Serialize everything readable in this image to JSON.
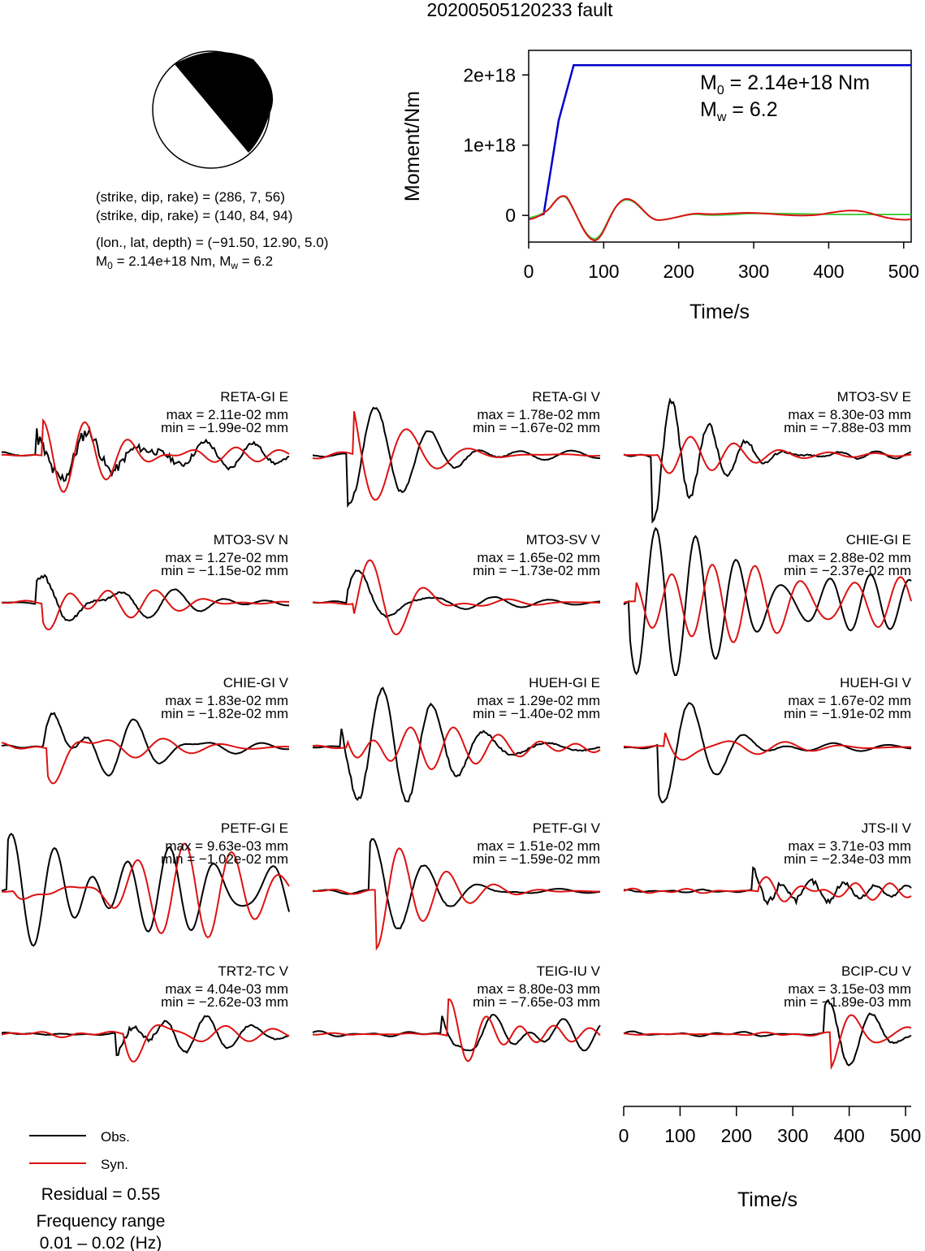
{
  "title": "20200505120233 fault",
  "mechanism": {
    "line1": "(strike, dip, rake) = (286, 7, 56)",
    "line2": "(strike, dip, rake) = (140, 84, 94)",
    "line3": "(lon., lat, depth) = (−91.50, 12.90, 5.0)",
    "m0_prefix": "M",
    "m0_sub": "0",
    "m0_rest": " = 2.14e+18 Nm, M",
    "mw_sub": "w",
    "mw_rest": " = 6.2"
  },
  "moment_plot": {
    "ylabel": "Moment/Nm",
    "xlabel": "Time/s",
    "annot_m0_main": "M",
    "annot_m0_sub": "0",
    "annot_m0_rest": " = 2.14e+18 Nm",
    "annot_mw_main": "M",
    "annot_mw_sub": "w",
    "annot_mw_rest": " = 6.2"
  },
  "wave_axis": {
    "xlabel": "Time/s"
  },
  "legend": {
    "obs_label": "Obs.",
    "syn_label": "Syn.",
    "obs_color": "#000000",
    "syn_color": "#dd1111"
  },
  "residual": "Residual = 0.55",
  "freq_label": "Frequency range",
  "freq_value": "0.01 – 0.02 (Hz)",
  "chart_data": [
    {
      "type": "line",
      "name": "moment-rate",
      "x": [
        0,
        20,
        40,
        60,
        80,
        100,
        510
      ],
      "series": [
        {
          "name": "",
          "color": "#0000cc",
          "values": [
            -5e+16,
            2e+16,
            1.35e+18,
            2.14e+18,
            2.14e+18,
            2.14e+18,
            2.14e+18
          ]
        }
      ],
      "xlim": [
        0,
        510
      ],
      "ylim": [
        -3.8e+17,
        2.35e+18
      ],
      "xticks": [
        0,
        100,
        200,
        300,
        400,
        500
      ],
      "yticks": [
        0,
        1e+18,
        2e+18
      ],
      "ytick_labels": [
        "0",
        "1e+18",
        "2e+18"
      ],
      "xtick_labels": [
        "0",
        "100",
        "200",
        "300",
        "400",
        "500"
      ]
    },
    {
      "type": "line",
      "name": "waveforms",
      "xlim": [
        0,
        510
      ],
      "xticks": [
        0,
        100,
        200,
        300,
        400,
        500
      ],
      "xtick_labels": [
        "0",
        "100",
        "200",
        "300",
        "400",
        "500"
      ],
      "stations": [
        {
          "label": "RETA-GI E",
          "max": "max = 2.11e-02 mm",
          "min": "min = −1.99e-02 mm"
        },
        {
          "label": "RETA-GI V",
          "max": "max = 1.78e-02 mm",
          "min": "min = −1.67e-02 mm"
        },
        {
          "label": "MTO3-SV E",
          "max": "max = 8.30e-03 mm",
          "min": "min = −7.88e-03 mm"
        },
        {
          "label": "MTO3-SV N",
          "max": "max = 1.27e-02 mm",
          "min": "min = −1.15e-02 mm"
        },
        {
          "label": "MTO3-SV V",
          "max": "max = 1.65e-02 mm",
          "min": "min = −1.73e-02 mm"
        },
        {
          "label": "CHIE-GI E",
          "max": "max = 2.88e-02 mm",
          "min": "min = −2.37e-02 mm"
        },
        {
          "label": "CHIE-GI V",
          "max": "max = 1.83e-02 mm",
          "min": "min = −1.82e-02 mm"
        },
        {
          "label": "HUEH-GI E",
          "max": "max = 1.29e-02 mm",
          "min": "min = −1.40e-02 mm"
        },
        {
          "label": "HUEH-GI V",
          "max": "max = 1.67e-02 mm",
          "min": "min = −1.91e-02 mm"
        },
        {
          "label": "PETF-GI E",
          "max": "max = 9.63e-03 mm",
          "min": "min = −1.02e-02 mm"
        },
        {
          "label": "PETF-GI V",
          "max": "max = 1.51e-02 mm",
          "min": "min = −1.59e-02 mm"
        },
        {
          "label": "JTS-II V",
          "max": "max = 3.71e-03 mm",
          "min": "min = −2.34e-03 mm"
        },
        {
          "label": "TRT2-TC V",
          "max": "max = 4.04e-03 mm",
          "min": "min = −2.62e-03 mm"
        },
        {
          "label": "TEIG-IU V",
          "max": "max = 8.80e-03 mm",
          "min": "min = −7.65e-03 mm"
        },
        {
          "label": "BCIP-CU V",
          "max": "max = 3.15e-03 mm",
          "min": "min = −1.89e-03 mm"
        }
      ]
    }
  ]
}
